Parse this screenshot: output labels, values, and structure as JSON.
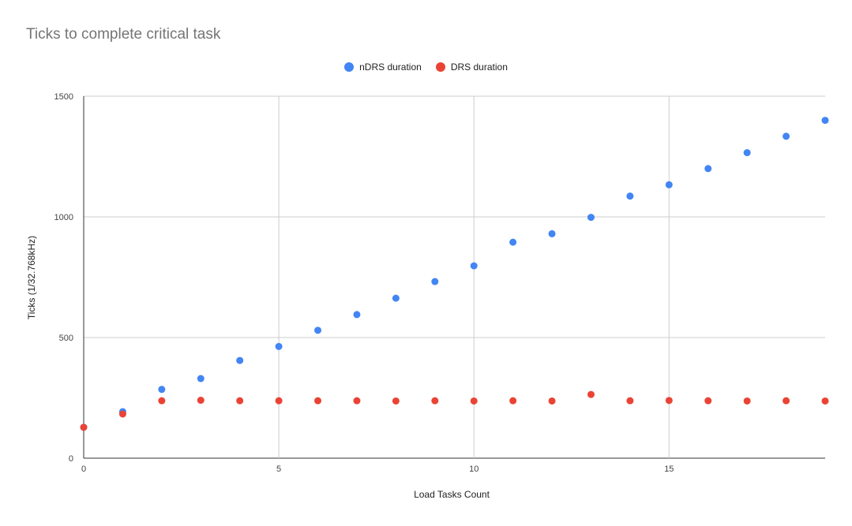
{
  "chart_data": {
    "type": "scatter",
    "title": "Ticks to complete critical task",
    "xlabel": "Load Tasks Count",
    "ylabel": "Ticks (1/32.768kHz)",
    "xlim": [
      0,
      19
    ],
    "ylim": [
      0,
      1500
    ],
    "xticks": [
      0,
      5,
      10,
      15
    ],
    "yticks": [
      0,
      500,
      1000,
      1500
    ],
    "grid": true,
    "legend_position": "top",
    "series": [
      {
        "name": "nDRS duration",
        "color": "#4285f4",
        "points": [
          [
            0,
            128
          ],
          [
            1,
            193
          ],
          [
            2,
            285
          ],
          [
            3,
            330
          ],
          [
            4,
            405
          ],
          [
            5,
            463
          ],
          [
            6,
            530
          ],
          [
            7,
            595
          ],
          [
            8,
            663
          ],
          [
            9,
            732
          ],
          [
            10,
            797
          ],
          [
            11,
            895
          ],
          [
            12,
            930
          ],
          [
            13,
            998
          ],
          [
            14,
            1086
          ],
          [
            15,
            1133
          ],
          [
            16,
            1200
          ],
          [
            17,
            1266
          ],
          [
            18,
            1334
          ],
          [
            19,
            1400
          ]
        ]
      },
      {
        "name": "DRS duration",
        "color": "#ea4335",
        "points": [
          [
            0,
            128
          ],
          [
            1,
            183
          ],
          [
            2,
            238
          ],
          [
            3,
            240
          ],
          [
            4,
            238
          ],
          [
            5,
            238
          ],
          [
            6,
            238
          ],
          [
            7,
            238
          ],
          [
            8,
            237
          ],
          [
            9,
            238
          ],
          [
            10,
            237
          ],
          [
            11,
            238
          ],
          [
            12,
            237
          ],
          [
            13,
            264
          ],
          [
            14,
            238
          ],
          [
            15,
            239
          ],
          [
            16,
            238
          ],
          [
            17,
            237
          ],
          [
            18,
            238
          ],
          [
            19,
            237
          ]
        ]
      }
    ]
  }
}
